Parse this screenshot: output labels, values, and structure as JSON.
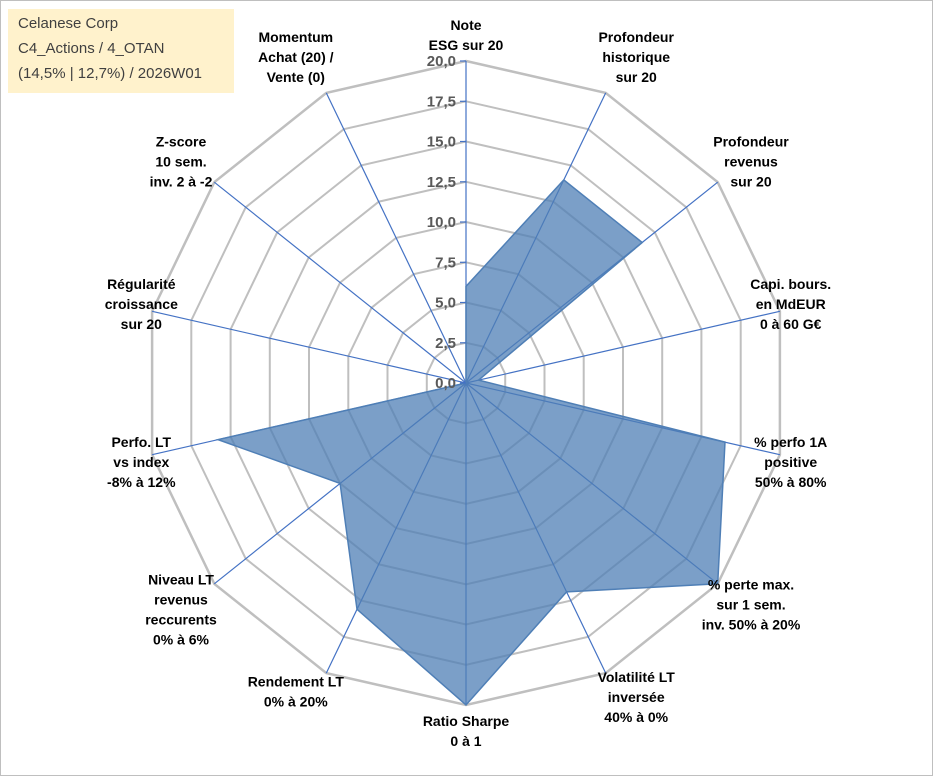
{
  "info": {
    "company": "Celanese Corp",
    "portfolio": "C4_Actions / 4_OTAN",
    "params": "(14,5% | 12,7%) / 2026W01"
  },
  "colors": {
    "fill": "#4f7fb6",
    "axis": "#4472c4",
    "grid": "#bfbfbf",
    "box": "#fff2cc"
  },
  "chart_data": {
    "type": "radar",
    "title": "",
    "range": [
      0,
      20
    ],
    "ticks": [
      "0,0",
      "2,5",
      "5,0",
      "7,5",
      "10,0",
      "12,5",
      "15,0",
      "17,5",
      "20,0"
    ],
    "axes": [
      {
        "label": [
          "Note",
          "ESG sur 20"
        ],
        "value": 6
      },
      {
        "label": [
          "Profondeur",
          "historique",
          "sur 20"
        ],
        "value": 14
      },
      {
        "label": [
          "Profondeur",
          "revenus",
          "sur 20"
        ],
        "value": 14
      },
      {
        "label": [
          "Capi. bours.",
          "en MdEUR",
          "0 à 60 G€"
        ],
        "value": 0.8
      },
      {
        "label": [
          "% perfo 1A",
          "positive",
          "50% à 80%"
        ],
        "value": 16.5
      },
      {
        "label": [
          "% perte max.",
          "sur 1 sem.",
          "inv. 50% à 20%"
        ],
        "value": 20
      },
      {
        "label": [
          "Volatilité LT",
          "inversée",
          "40% à 0%"
        ],
        "value": 14.4
      },
      {
        "label": [
          "Ratio Sharpe",
          "0 à 1"
        ],
        "value": 20
      },
      {
        "label": [
          "Rendement LT",
          "0% à 20%"
        ],
        "value": 15.6
      },
      {
        "label": [
          "Niveau LT",
          "revenus",
          "reccurents",
          "0% à 6%"
        ],
        "value": 10
      },
      {
        "label": [
          "Perfo. LT",
          "vs index",
          "-8% à 12%"
        ],
        "value": 15.8
      },
      {
        "label": [
          "Régularité",
          "croissance",
          "sur 20"
        ],
        "value": 0
      },
      {
        "label": [
          "Z-score",
          "10 sem.",
          "inv. 2 à -2"
        ],
        "value": 0
      },
      {
        "label": [
          "Momentum",
          "Achat (20) /",
          "Vente (0)"
        ],
        "value": 0
      }
    ]
  }
}
